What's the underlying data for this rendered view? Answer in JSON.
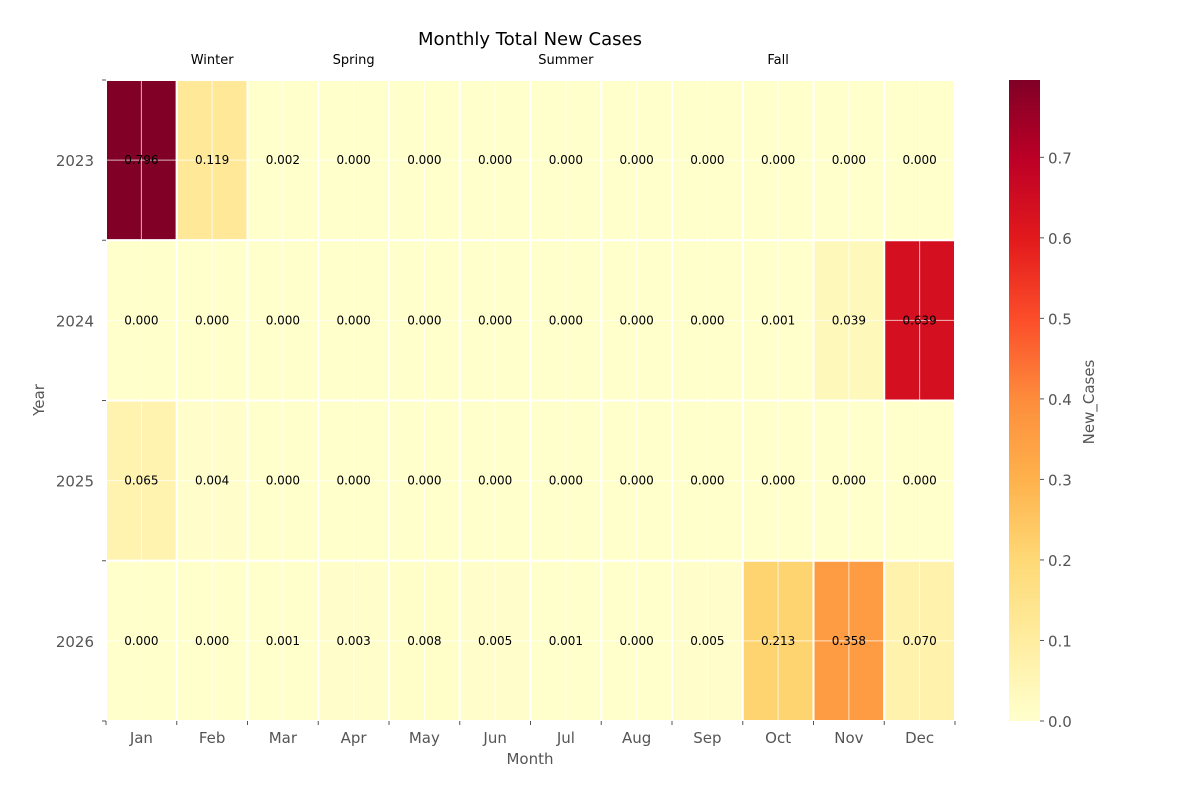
{
  "chart_data": {
    "type": "heatmap",
    "title": "Monthly Total New Cases",
    "xlabel": "Month",
    "ylabel": "Year",
    "colorbar_label": "New_Cases",
    "colormap": "YlOrRd",
    "vmin": 0,
    "vmax": 0.796,
    "colorbar_ticks": [
      "0.0",
      "0.1",
      "0.2",
      "0.3",
      "0.4",
      "0.5",
      "0.6",
      "0.7"
    ],
    "months": [
      "Jan",
      "Feb",
      "Mar",
      "Apr",
      "May",
      "Jun",
      "Jul",
      "Aug",
      "Sep",
      "Oct",
      "Nov",
      "Dec"
    ],
    "years": [
      "2023",
      "2024",
      "2025",
      "2026"
    ],
    "values": [
      [
        0.796,
        0.119,
        0.002,
        0.0,
        0.0,
        0.0,
        0.0,
        0.0,
        0.0,
        0.0,
        0.0,
        0.0
      ],
      [
        0.0,
        0.0,
        0.0,
        0.0,
        0.0,
        0.0,
        0.0,
        0.0,
        0.0,
        0.001,
        0.039,
        0.639
      ],
      [
        0.065,
        0.004,
        0.0,
        0.0,
        0.0,
        0.0,
        0.0,
        0.0,
        0.0,
        0.0,
        0.0,
        0.0
      ],
      [
        0.0,
        0.0,
        0.001,
        0.003,
        0.008,
        0.005,
        0.001,
        0.0,
        0.005,
        0.213,
        0.358,
        0.07
      ]
    ],
    "value_labels": [
      [
        "0.796",
        "0.119",
        "0.002",
        "0.000",
        "0.000",
        "0.000",
        "0.000",
        "0.000",
        "0.000",
        "0.000",
        "0.000",
        "0.000"
      ],
      [
        "0.000",
        "0.000",
        "0.000",
        "0.000",
        "0.000",
        "0.000",
        "0.000",
        "0.000",
        "0.000",
        "0.001",
        "0.039",
        "0.639"
      ],
      [
        "0.065",
        "0.004",
        "0.000",
        "0.000",
        "0.000",
        "0.000",
        "0.000",
        "0.000",
        "0.000",
        "0.000",
        "0.000",
        "0.000"
      ],
      [
        "0.000",
        "0.000",
        "0.001",
        "0.003",
        "0.008",
        "0.005",
        "0.001",
        "0.000",
        "0.005",
        "0.213",
        "0.358",
        "0.070"
      ]
    ],
    "seasons": [
      {
        "name": "Winter",
        "label_month": "Feb"
      },
      {
        "name": "Spring",
        "label_month": "Apr"
      },
      {
        "name": "Summer",
        "label_month": "Jul"
      },
      {
        "name": "Fall",
        "label_month": "Oct"
      }
    ],
    "season_band_colors": [
      "#a29ab0",
      "#c4ddd6",
      "#b0f5a0",
      "#b0f5a0",
      "#b0f5a0",
      "#f5eaa2",
      "#f5eaa2",
      "#f5eaa2",
      "#fdbd41",
      "#fdbd41",
      "#fdbd41",
      "#c4e4e0"
    ],
    "grid": true,
    "legend": "none"
  }
}
